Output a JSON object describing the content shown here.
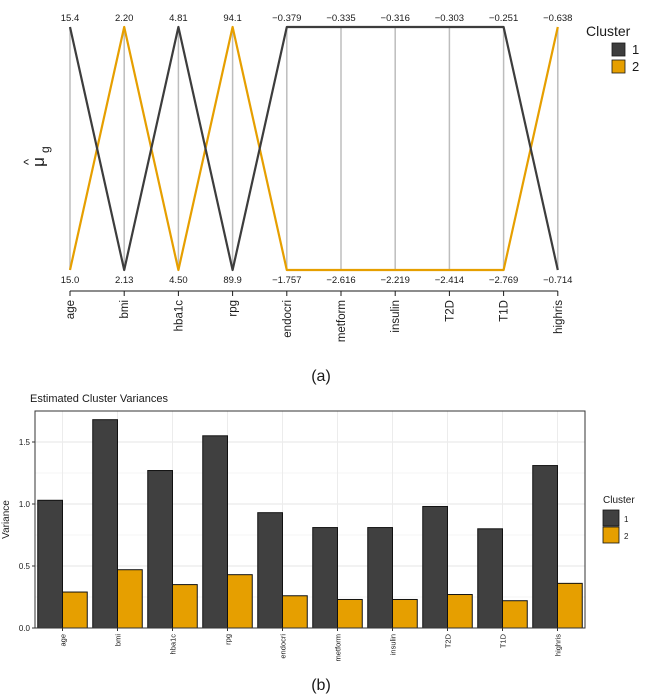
{
  "chart_data": [
    {
      "type": "line",
      "subtype": "parallel-coordinates",
      "ylabel": "μ̂g",
      "ylabel_symbol": "μ",
      "ylabel_hat": "^",
      "ylabel_sub": "g",
      "panel_label": "(a)",
      "variables": [
        "age",
        "bmi",
        "hba1c",
        "rpg",
        "endocri",
        "metform",
        "insulin",
        "T2D",
        "T1D",
        "highris"
      ],
      "top_labels": [
        "15.4",
        "2.20",
        "4.81",
        "94.1",
        "−0.379",
        "−0.335",
        "−0.316",
        "−0.303",
        "−0.251",
        "−0.638"
      ],
      "bottom_labels": [
        "15.0",
        "2.13",
        "4.50",
        "89.9",
        "−1.757",
        "−2.616",
        "−2.219",
        "−2.414",
        "−2.769",
        "−0.714"
      ],
      "series": [
        {
          "name": "1",
          "color": "#3d3d3d",
          "values": [
            15.4,
            2.13,
            4.81,
            89.9,
            -0.379,
            -0.335,
            -0.316,
            -0.303,
            -0.251,
            -0.714
          ]
        },
        {
          "name": "2",
          "color": "#e69f00",
          "values": [
            15.0,
            2.2,
            4.5,
            94.1,
            -1.757,
            -2.616,
            -2.219,
            -2.414,
            -2.769,
            -0.638
          ]
        }
      ],
      "legend": {
        "title": "Cluster",
        "items": [
          "1",
          "2"
        ],
        "position": "right"
      }
    },
    {
      "type": "bar",
      "title": "Estimated Cluster Variances",
      "xlabel": "",
      "ylabel": "Variance",
      "panel_label": "(b)",
      "categories": [
        "age",
        "bmi",
        "hba1c",
        "rpg",
        "endocri",
        "metform",
        "insulin",
        "T2D",
        "T1D",
        "highris"
      ],
      "ylim": [
        0,
        1.75
      ],
      "yticks": [
        0.0,
        0.5,
        1.0,
        1.5
      ],
      "ytick_labels": [
        "0.0",
        "0.5",
        "1.0",
        "1.5"
      ],
      "series": [
        {
          "name": "1",
          "color": "#404040",
          "values": [
            1.03,
            1.68,
            1.27,
            1.55,
            0.93,
            0.81,
            0.81,
            0.98,
            0.8,
            1.31
          ]
        },
        {
          "name": "2",
          "color": "#e69f00",
          "values": [
            0.29,
            0.47,
            0.35,
            0.43,
            0.26,
            0.23,
            0.23,
            0.27,
            0.22,
            0.36
          ]
        }
      ],
      "legend": {
        "title": "Cluster",
        "items": [
          "1",
          "2"
        ],
        "position": "right"
      }
    }
  ]
}
